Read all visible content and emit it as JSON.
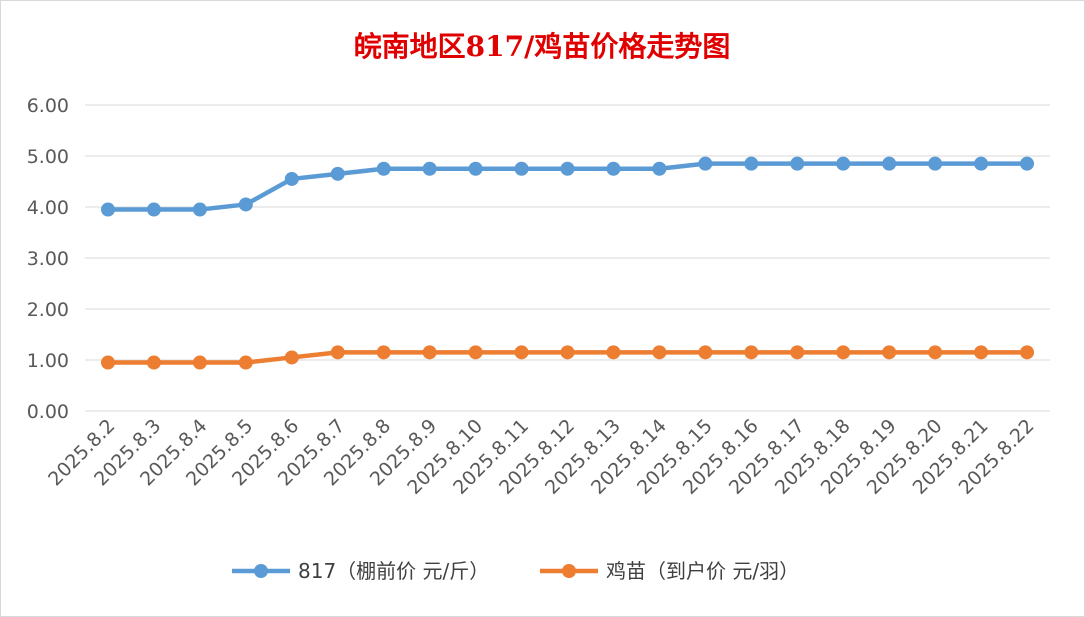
{
  "chart_data": {
    "type": "line",
    "title": "皖南地区817/鸡苗价格走势图",
    "xlabel": "",
    "ylabel": "",
    "categories": [
      "2025.8.2",
      "2025.8.3",
      "2025.8.4",
      "2025.8.5",
      "2025.8.6",
      "2025.8.7",
      "2025.8.8",
      "2025.8.9",
      "2025.8.10",
      "2025.8.11",
      "2025.8.12",
      "2025.8.13",
      "2025.8.14",
      "2025.8.15",
      "2025.8.16",
      "2025.8.17",
      "2025.8.18",
      "2025.8.19",
      "2025.8.20",
      "2025.8.21",
      "2025.8.22"
    ],
    "ylim": [
      0,
      6
    ],
    "yticks": [
      "0.00",
      "1.00",
      "2.00",
      "3.00",
      "4.00",
      "5.00",
      "6.00"
    ],
    "grid": true,
    "legend_position": "bottom",
    "series": [
      {
        "name": "817（棚前价 元/斤）",
        "color": "#5b9bd5",
        "values": [
          3.95,
          3.95,
          3.95,
          4.05,
          4.55,
          4.65,
          4.75,
          4.75,
          4.75,
          4.75,
          4.75,
          4.75,
          4.75,
          4.85,
          4.85,
          4.85,
          4.85,
          4.85,
          4.85,
          4.85,
          4.85
        ]
      },
      {
        "name": "鸡苗（到户价 元/羽）",
        "color": "#ed7d31",
        "values": [
          0.95,
          0.95,
          0.95,
          0.95,
          1.05,
          1.15,
          1.15,
          1.15,
          1.15,
          1.15,
          1.15,
          1.15,
          1.15,
          1.15,
          1.15,
          1.15,
          1.15,
          1.15,
          1.15,
          1.15,
          1.15
        ]
      }
    ]
  }
}
